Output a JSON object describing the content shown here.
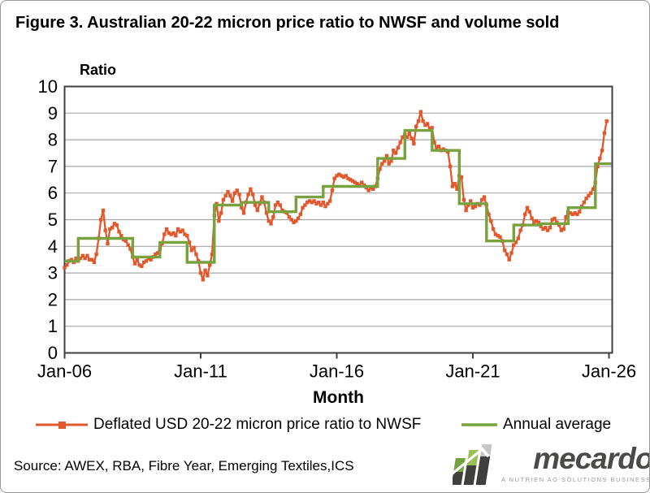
{
  "figure": {
    "title": "Figure 3. Australian 20-22 micron price ratio to NWSF and volume sold",
    "y_axis_title": "Ratio",
    "x_axis_title": "Month",
    "source": "Source: AWEX, RBA, Fibre Year, Emerging Textiles,ICS"
  },
  "legend": [
    {
      "label": "Deflated USD 20-22 micron price ratio to NWSF",
      "color": "#E2572B",
      "marker": "square"
    },
    {
      "label": "Annual average",
      "color": "#77A23E",
      "marker": "none"
    }
  ],
  "logo": {
    "wordmark": "mecardo",
    "tagline": "A NUTRIEN AG SOLUTIONS BUSINESS"
  },
  "colors": {
    "monthly_line": "#E2572B",
    "annual_line": "#77A23E",
    "gridline": "#A7A7A7",
    "axis_frame": "#3F3F3F",
    "logo_dark": "#3F3F3E",
    "logo_green": "#76A23F",
    "logo_light_green": "#9BC053",
    "logo_gray": "#C6C6C6",
    "logo_text": "#4A4A49"
  },
  "chart_data": {
    "type": "line",
    "title": "Figure 3. Australian 20-22 micron price ratio to NWSF and volume sold",
    "xlabel": "Month",
    "ylabel": "Ratio",
    "ylim": [
      0,
      10
    ],
    "grid": true,
    "legend_position": "bottom",
    "y_ticks": [
      0,
      1,
      2,
      3,
      4,
      5,
      6,
      7,
      8,
      9,
      10
    ],
    "x_ticks": [
      "Jan-06",
      "Jan-11",
      "Jan-16",
      "Jan-21",
      "Jan-26"
    ],
    "x_tick_interval_months": 60,
    "monthly_series": {
      "name": "Deflated USD 20-22 micron price ratio to NWSF",
      "start": "Jan-2006",
      "interval": "monthly",
      "values": [
        3.2,
        3.3,
        3.45,
        3.5,
        3.4,
        3.55,
        3.45,
        3.55,
        3.65,
        3.55,
        3.65,
        3.5,
        3.5,
        3.4,
        3.7,
        4.3,
        5.0,
        5.35,
        4.6,
        4.1,
        4.65,
        4.7,
        4.85,
        4.8,
        4.55,
        4.4,
        4.25,
        4.2,
        4.05,
        3.9,
        3.6,
        3.35,
        3.5,
        3.3,
        3.25,
        3.4,
        3.45,
        3.55,
        3.5,
        3.6,
        3.7,
        3.75,
        3.9,
        4.1,
        4.45,
        4.65,
        4.5,
        4.45,
        4.5,
        4.4,
        4.65,
        4.55,
        4.6,
        4.45,
        4.4,
        4.15,
        3.85,
        3.95,
        3.7,
        3.45,
        3.0,
        2.75,
        3.1,
        2.9,
        3.3,
        3.7,
        5.15,
        5.6,
        4.95,
        5.25,
        5.75,
        5.9,
        6.05,
        5.9,
        5.7,
        6.0,
        6.1,
        5.95,
        5.45,
        5.25,
        5.65,
        5.95,
        6.15,
        5.95,
        5.55,
        5.35,
        5.6,
        5.85,
        5.65,
        5.25,
        4.95,
        4.85,
        5.1,
        5.55,
        5.65,
        5.55,
        5.35,
        5.3,
        5.25,
        5.1,
        5.0,
        4.9,
        4.95,
        5.05,
        5.2,
        5.45,
        5.55,
        5.65,
        5.7,
        5.65,
        5.7,
        5.6,
        5.65,
        5.55,
        5.65,
        5.5,
        5.6,
        5.7,
        6.1,
        6.55,
        6.65,
        6.7,
        6.65,
        6.6,
        6.65,
        6.55,
        6.5,
        6.45,
        6.4,
        6.35,
        6.3,
        6.4,
        6.3,
        6.2,
        6.1,
        6.2,
        6.15,
        6.25,
        6.55,
        6.9,
        7.1,
        7.2,
        7.4,
        7.1,
        7.2,
        7.6,
        7.5,
        7.7,
        7.9,
        8.1,
        8.2,
        8.1,
        8.25,
        8.05,
        7.85,
        8.5,
        8.7,
        9.05,
        8.7,
        8.55,
        8.6,
        8.4,
        8.45,
        7.9,
        7.7,
        7.75,
        7.6,
        7.65,
        7.6,
        7.55,
        7.0,
        6.25,
        6.35,
        6.15,
        6.65,
        6.6,
        5.75,
        5.35,
        5.55,
        5.7,
        5.45,
        5.5,
        5.6,
        5.55,
        5.75,
        5.85,
        5.55,
        5.2,
        4.95,
        4.65,
        4.45,
        4.4,
        4.35,
        4.2,
        3.85,
        3.7,
        3.5,
        3.75,
        4.05,
        4.15,
        4.3,
        4.6,
        4.8,
        5.2,
        5.45,
        5.3,
        5.05,
        4.9,
        4.95,
        4.9,
        4.75,
        4.65,
        4.7,
        4.6,
        4.7,
        5.0,
        5.05,
        4.9,
        4.8,
        4.6,
        4.65,
        5.1,
        5.3,
        5.25,
        5.2,
        5.25,
        5.2,
        5.3,
        5.5,
        5.65,
        5.8,
        5.9,
        6.0,
        6.15,
        6.4,
        7.0,
        7.3,
        7.6,
        8.25,
        8.7
      ]
    },
    "annual_average": {
      "name": "Annual average",
      "boundaries_months_from_jan06": [
        0,
        6,
        18,
        30,
        42,
        54,
        66,
        78,
        90,
        102,
        114,
        126,
        138,
        150,
        162,
        174,
        186,
        198,
        210,
        222,
        234,
        241
      ],
      "seasons": [
        {
          "period": "Jan-06 to Jun-06",
          "value": 3.45
        },
        {
          "period": "2006/07",
          "value": 4.3
        },
        {
          "period": "2007/08",
          "value": 4.3
        },
        {
          "period": "2008/09",
          "value": 3.6
        },
        {
          "period": "2009/10",
          "value": 4.15
        },
        {
          "period": "2010/11",
          "value": 3.4
        },
        {
          "period": "2011/12",
          "value": 5.55
        },
        {
          "period": "2012/13",
          "value": 5.65
        },
        {
          "period": "2013/14",
          "value": 5.3
        },
        {
          "period": "2014/15",
          "value": 5.85
        },
        {
          "period": "2015/16",
          "value": 6.25
        },
        {
          "period": "2016/17",
          "value": 6.25
        },
        {
          "period": "2017/18",
          "value": 7.3
        },
        {
          "period": "2018/19",
          "value": 8.35
        },
        {
          "period": "2019/20",
          "value": 7.6
        },
        {
          "period": "2020/21",
          "value": 5.6
        },
        {
          "period": "2021/22",
          "value": 4.2
        },
        {
          "period": "2022/23",
          "value": 4.8
        },
        {
          "period": "2023/24",
          "value": 4.85
        },
        {
          "period": "2024/25",
          "value": 5.45
        },
        {
          "period": "2025/26 part",
          "value": 7.1
        }
      ]
    }
  }
}
